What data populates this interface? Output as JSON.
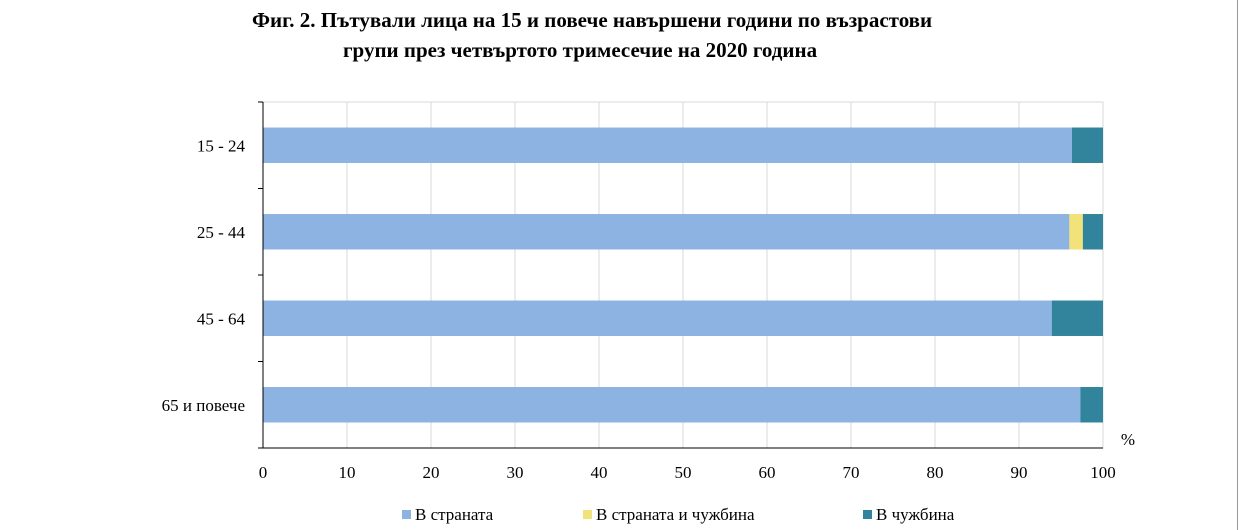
{
  "title": {
    "line1": "Фиг. 2. Пътували лица на 15 и повече навършени години по възрастови",
    "line2": "групи през четвъртото тримесечие на 2020 година"
  },
  "chart_data": {
    "type": "bar",
    "orientation": "horizontal",
    "stacked": true,
    "title": "Фиг. 2. Пътували лица на 15 и повече навършени години по възрастови групи през четвъртото тримесечие на 2020 година",
    "categories": [
      "15 - 24",
      "25 - 44",
      "45 - 64",
      "65 и повече"
    ],
    "series": [
      {
        "name": "В страната",
        "color": "#8db3e2",
        "values": [
          96.3,
          96.0,
          93.9,
          97.3
        ]
      },
      {
        "name": "В страната  и чужбина",
        "color": "#f2e27a",
        "values": [
          0,
          1.6,
          0,
          0
        ]
      },
      {
        "name": "В чужбина",
        "color": "#31849b",
        "values": [
          3.7,
          2.4,
          6.1,
          2.7
        ]
      }
    ],
    "xlabel": "%",
    "ylabel": "",
    "xlim": [
      0,
      100
    ],
    "xticks": [
      "0",
      "10",
      "20",
      "30",
      "40",
      "50",
      "60",
      "70",
      "80",
      "90",
      "100"
    ],
    "grid": true,
    "legend_position": "bottom"
  }
}
